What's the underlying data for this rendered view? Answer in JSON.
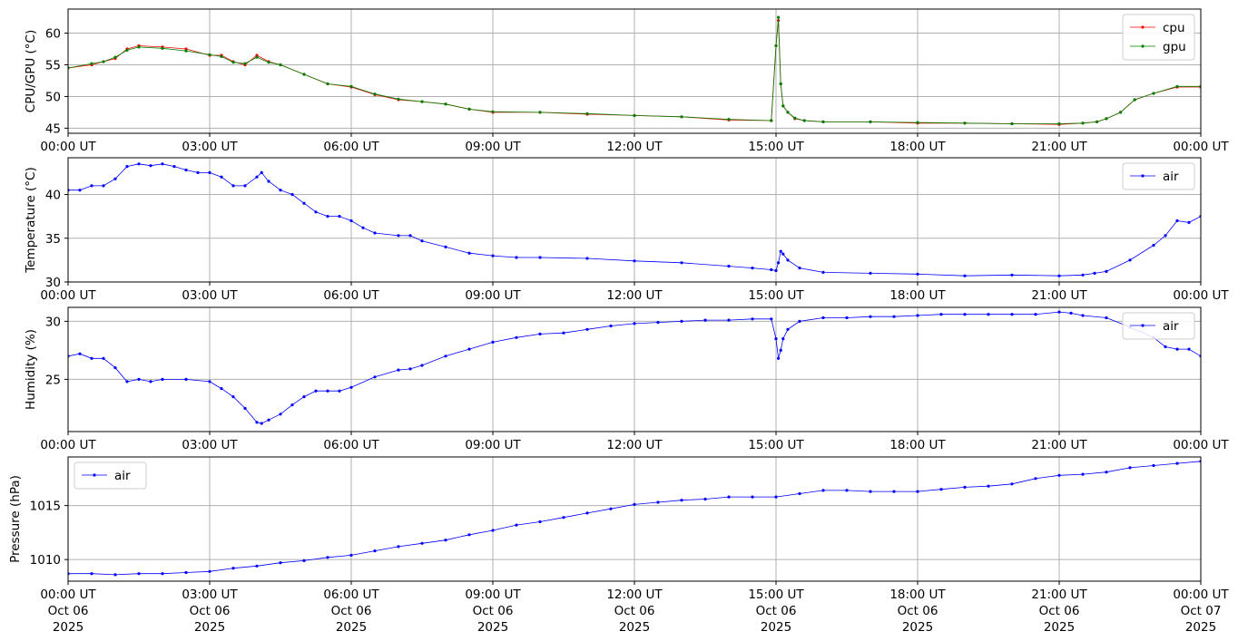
{
  "chart_data": [
    {
      "type": "line",
      "ylabel": "CPU/GPU (°C)",
      "ylim": [
        44.2,
        63.8
      ],
      "xlim": [
        0,
        24
      ],
      "grid": true,
      "legend": "top-right",
      "yticks": [
        45,
        50,
        55,
        60
      ],
      "xticks": [
        "00:00 UT",
        "03:00 UT",
        "06:00 UT",
        "09:00 UT",
        "12:00 UT",
        "15:00 UT",
        "18:00 UT",
        "21:00 UT",
        "00:00 UT"
      ],
      "series": [
        {
          "name": "cpu",
          "color": "#ff0000",
          "x": [
            0,
            0.5,
            0.75,
            1.0,
            1.25,
            1.5,
            2.0,
            2.5,
            3.0,
            3.25,
            3.5,
            3.75,
            4.0,
            4.25,
            4.5,
            5.0,
            5.5,
            6.0,
            6.5,
            7.0,
            7.5,
            8.0,
            8.5,
            9.0,
            10.0,
            11.0,
            12.0,
            13.0,
            14.0,
            14.9,
            15.0,
            15.05,
            15.1,
            15.15,
            15.25,
            15.4,
            15.6,
            16.0,
            17.0,
            18.0,
            19.0,
            20.0,
            21.0,
            21.5,
            21.8,
            22.0,
            22.3,
            22.6,
            23.0,
            23.5,
            24.0
          ],
          "y": [
            54.5,
            55,
            55.5,
            56,
            57.5,
            58,
            57.8,
            57.5,
            56.5,
            56.5,
            55.5,
            55,
            56.5,
            55.5,
            55,
            53.5,
            52,
            51.5,
            50.3,
            49.5,
            49.2,
            48.8,
            48,
            47.5,
            47.5,
            47.2,
            47,
            46.8,
            46.3,
            46.2,
            58,
            62,
            52,
            48.5,
            47.5,
            46.5,
            46.2,
            46,
            46,
            45.8,
            45.8,
            45.7,
            45.6,
            45.8,
            46,
            46.5,
            47.5,
            49.5,
            50.5,
            51.5,
            51.5
          ]
        },
        {
          "name": "gpu",
          "color": "#008000",
          "x": [
            0,
            0.5,
            0.75,
            1.0,
            1.25,
            1.5,
            2.0,
            2.5,
            3.0,
            3.25,
            3.5,
            3.75,
            4.0,
            4.25,
            4.5,
            5.0,
            5.5,
            6.0,
            6.5,
            7.0,
            7.5,
            8.0,
            8.5,
            9.0,
            10.0,
            11.0,
            12.0,
            13.0,
            14.0,
            14.9,
            15.0,
            15.05,
            15.1,
            15.15,
            15.25,
            15.4,
            15.6,
            16.0,
            17.0,
            18.0,
            19.0,
            20.0,
            21.0,
            21.5,
            21.8,
            22.0,
            22.3,
            22.6,
            23.0,
            23.5,
            24.0
          ],
          "y": [
            54.5,
            55.2,
            55.5,
            56.2,
            57.3,
            57.8,
            57.6,
            57.2,
            56.6,
            56.3,
            55.4,
            55.2,
            56.2,
            55.4,
            55,
            53.5,
            52,
            51.6,
            50.4,
            49.6,
            49.2,
            48.8,
            48,
            47.6,
            47.5,
            47.3,
            47,
            46.8,
            46.4,
            46.2,
            58,
            62.5,
            52,
            48.5,
            47.5,
            46.6,
            46.2,
            46,
            46,
            45.9,
            45.8,
            45.7,
            45.7,
            45.8,
            46,
            46.5,
            47.5,
            49.5,
            50.5,
            51.6,
            51.6
          ]
        }
      ]
    },
    {
      "type": "line",
      "ylabel": "Temperature (°C)",
      "ylim": [
        30,
        44.2
      ],
      "xlim": [
        0,
        24
      ],
      "grid": true,
      "legend": "top-right",
      "yticks": [
        30,
        35,
        40
      ],
      "xticks": [
        "00:00 UT",
        "03:00 UT",
        "06:00 UT",
        "09:00 UT",
        "12:00 UT",
        "15:00 UT",
        "18:00 UT",
        "21:00 UT",
        "00:00 UT"
      ],
      "series": [
        {
          "name": "air",
          "color": "#0000ff",
          "x": [
            0,
            0.25,
            0.5,
            0.75,
            1.0,
            1.25,
            1.5,
            1.75,
            2.0,
            2.25,
            2.5,
            2.75,
            3.0,
            3.25,
            3.5,
            3.75,
            4.0,
            4.1,
            4.25,
            4.5,
            4.75,
            5.0,
            5.25,
            5.5,
            5.75,
            6.0,
            6.25,
            6.5,
            7.0,
            7.25,
            7.5,
            8.0,
            8.5,
            9.0,
            9.5,
            10.0,
            11.0,
            12.0,
            13.0,
            14.0,
            14.5,
            14.9,
            15.0,
            15.05,
            15.1,
            15.15,
            15.25,
            15.5,
            16.0,
            17.0,
            18.0,
            19.0,
            20.0,
            21.0,
            21.5,
            21.75,
            22.0,
            22.5,
            23.0,
            23.25,
            23.5,
            23.75,
            24.0
          ],
          "y": [
            40.5,
            40.5,
            41,
            41,
            41.8,
            43.2,
            43.5,
            43.3,
            43.5,
            43.2,
            42.8,
            42.5,
            42.5,
            42,
            41,
            41,
            42,
            42.5,
            41.5,
            40.5,
            40,
            39,
            38,
            37.5,
            37.5,
            37,
            36.2,
            35.6,
            35.3,
            35.3,
            34.7,
            34,
            33.3,
            33,
            32.8,
            32.8,
            32.7,
            32.4,
            32.2,
            31.8,
            31.6,
            31.4,
            31.3,
            32.2,
            33.5,
            33.2,
            32.5,
            31.6,
            31.1,
            31,
            30.9,
            30.7,
            30.8,
            30.7,
            30.8,
            31,
            31.2,
            32.5,
            34.2,
            35.3,
            37,
            36.8,
            37.5
          ]
        }
      ]
    },
    {
      "type": "line",
      "ylabel": "Humidity (%)",
      "ylim": [
        20.5,
        31.2
      ],
      "xlim": [
        0,
        24
      ],
      "grid": true,
      "legend": "top-right",
      "yticks": [
        25,
        30
      ],
      "xticks": [
        "00:00 UT",
        "03:00 UT",
        "06:00 UT",
        "09:00 UT",
        "12:00 UT",
        "15:00 UT",
        "18:00 UT",
        "21:00 UT",
        "00:00 UT"
      ],
      "series": [
        {
          "name": "air",
          "color": "#0000ff",
          "x": [
            0,
            0.25,
            0.5,
            0.75,
            1.0,
            1.25,
            1.5,
            1.75,
            2.0,
            2.5,
            3.0,
            3.25,
            3.5,
            3.75,
            4.0,
            4.1,
            4.25,
            4.5,
            4.75,
            5.0,
            5.25,
            5.5,
            5.75,
            6.0,
            6.5,
            7.0,
            7.25,
            7.5,
            8.0,
            8.5,
            9.0,
            9.5,
            10.0,
            10.5,
            11.0,
            11.5,
            12.0,
            12.5,
            13.0,
            13.5,
            14.0,
            14.5,
            14.9,
            15.0,
            15.05,
            15.1,
            15.15,
            15.25,
            15.5,
            16.0,
            16.5,
            17.0,
            17.5,
            18.0,
            18.5,
            19.0,
            19.5,
            20.0,
            20.5,
            21.0,
            21.25,
            21.5,
            22.0,
            22.5,
            23.0,
            23.25,
            23.5,
            23.75,
            24.0
          ],
          "y": [
            27,
            27.2,
            26.8,
            26.8,
            26,
            24.8,
            25,
            24.8,
            25,
            25,
            24.8,
            24.2,
            23.5,
            22.5,
            21.3,
            21.2,
            21.5,
            22,
            22.8,
            23.5,
            24,
            24,
            24,
            24.3,
            25.2,
            25.8,
            25.9,
            26.2,
            27,
            27.6,
            28.2,
            28.6,
            28.9,
            29,
            29.3,
            29.6,
            29.8,
            29.9,
            30,
            30.1,
            30.1,
            30.2,
            30.2,
            28.5,
            26.8,
            27.5,
            28.5,
            29.3,
            30,
            30.3,
            30.3,
            30.4,
            30.4,
            30.5,
            30.6,
            30.6,
            30.6,
            30.6,
            30.6,
            30.8,
            30.7,
            30.5,
            30.3,
            29.5,
            28.6,
            27.8,
            27.6,
            27.6,
            27
          ]
        }
      ]
    },
    {
      "type": "line",
      "ylabel": "Pressure (hPa)",
      "ylim": [
        1008,
        1019.5
      ],
      "xlim": [
        0,
        24
      ],
      "grid": true,
      "legend": "top-left",
      "yticks": [
        1010,
        1015
      ],
      "xticks": [
        "00:00 UT",
        "03:00 UT",
        "06:00 UT",
        "09:00 UT",
        "12:00 UT",
        "15:00 UT",
        "18:00 UT",
        "21:00 UT",
        "00:00 UT"
      ],
      "xticks_date": [
        "Oct 06",
        "Oct 06",
        "Oct 06",
        "Oct 06",
        "Oct 06",
        "Oct 06",
        "Oct 06",
        "Oct 06",
        "Oct 07"
      ],
      "xticks_year": [
        "2025",
        "2025",
        "2025",
        "2025",
        "2025",
        "2025",
        "2025",
        "2025",
        "2025"
      ],
      "series": [
        {
          "name": "air",
          "color": "#0000ff",
          "x": [
            0,
            0.5,
            1.0,
            1.5,
            2.0,
            2.5,
            3.0,
            3.5,
            4.0,
            4.5,
            5.0,
            5.5,
            6.0,
            6.5,
            7.0,
            7.5,
            8.0,
            8.5,
            9.0,
            9.5,
            10.0,
            10.5,
            11.0,
            11.5,
            12.0,
            12.5,
            13.0,
            13.5,
            14.0,
            14.5,
            15.0,
            15.5,
            16.0,
            16.5,
            17.0,
            17.5,
            18.0,
            18.5,
            19.0,
            19.5,
            20.0,
            20.5,
            21.0,
            21.5,
            22.0,
            22.5,
            23.0,
            23.5,
            24.0
          ],
          "y": [
            1008.7,
            1008.7,
            1008.6,
            1008.7,
            1008.7,
            1008.8,
            1008.9,
            1009.2,
            1009.4,
            1009.7,
            1009.9,
            1010.2,
            1010.4,
            1010.8,
            1011.2,
            1011.5,
            1011.8,
            1012.3,
            1012.7,
            1013.2,
            1013.5,
            1013.9,
            1014.3,
            1014.7,
            1015.1,
            1015.3,
            1015.5,
            1015.6,
            1015.8,
            1015.8,
            1015.8,
            1016.1,
            1016.4,
            1016.4,
            1016.3,
            1016.3,
            1016.3,
            1016.5,
            1016.7,
            1016.8,
            1017.0,
            1017.5,
            1017.8,
            1017.9,
            1018.1,
            1018.5,
            1018.7,
            1018.9,
            1019.1
          ]
        }
      ]
    }
  ]
}
